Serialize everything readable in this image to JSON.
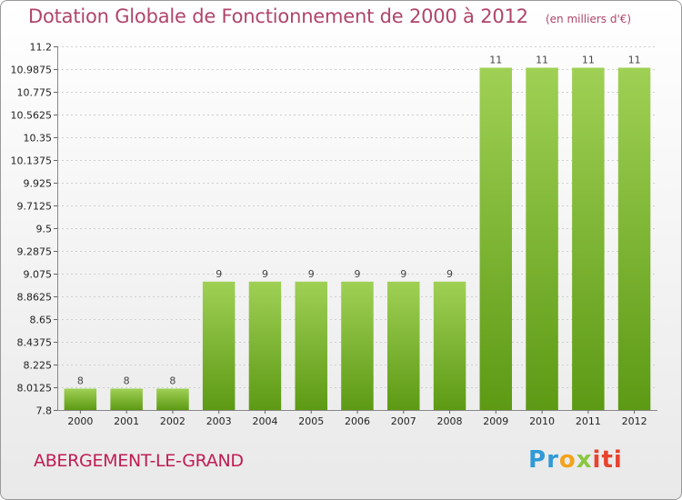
{
  "header": {
    "title": "Dotation Globale de Fonctionnement de 2000 à 2012",
    "unit": "(en milliers d'€)"
  },
  "footer": {
    "commune": "ABERGEMENT-LE-GRAND",
    "brand": "Proxiti",
    "brand_colors": [
      "#2f9ad6",
      "#f3a21b",
      "#8cc63f",
      "#e8432e"
    ]
  },
  "chart_data": {
    "type": "bar",
    "title": "Dotation Globale de Fonctionnement de 2000 à 2012",
    "categories": [
      "2000",
      "2001",
      "2002",
      "2003",
      "2004",
      "2005",
      "2006",
      "2007",
      "2008",
      "2009",
      "2010",
      "2011",
      "2012"
    ],
    "values": [
      8,
      8,
      8,
      9,
      9,
      9,
      9,
      9,
      9,
      11,
      11,
      11,
      11
    ],
    "value_labels": [
      "8",
      "8",
      "8",
      "9",
      "9",
      "9",
      "9",
      "9",
      "9",
      "11",
      "11",
      "11",
      "11"
    ],
    "ylim": [
      7.8,
      11.2
    ],
    "yticks": [
      {
        "value": 7.8,
        "label": "7.8"
      },
      {
        "value": 8.0125,
        "label": "8.0125"
      },
      {
        "value": 8.225,
        "label": "8.225"
      },
      {
        "value": 8.4375,
        "label": "8.4375"
      },
      {
        "value": 8.65,
        "label": "8.65"
      },
      {
        "value": 8.8625,
        "label": "8.8625"
      },
      {
        "value": 9.075,
        "label": "9.075"
      },
      {
        "value": 9.2875,
        "label": "9.2875"
      },
      {
        "value": 9.5,
        "label": "9.5"
      },
      {
        "value": 9.7125,
        "label": "9.7125"
      },
      {
        "value": 9.925,
        "label": "9.925"
      },
      {
        "value": 10.1375,
        "label": "10.1375"
      },
      {
        "value": 10.35,
        "label": "10.35"
      },
      {
        "value": 10.5625,
        "label": "10.5625"
      },
      {
        "value": 10.775,
        "label": "10.775"
      },
      {
        "value": 10.9875,
        "label": "10.9875"
      },
      {
        "value": 11.2,
        "label": "11.2"
      }
    ],
    "grid": true,
    "bar_color_top": "#9fd055",
    "bar_color_bottom": "#5d9a14"
  }
}
